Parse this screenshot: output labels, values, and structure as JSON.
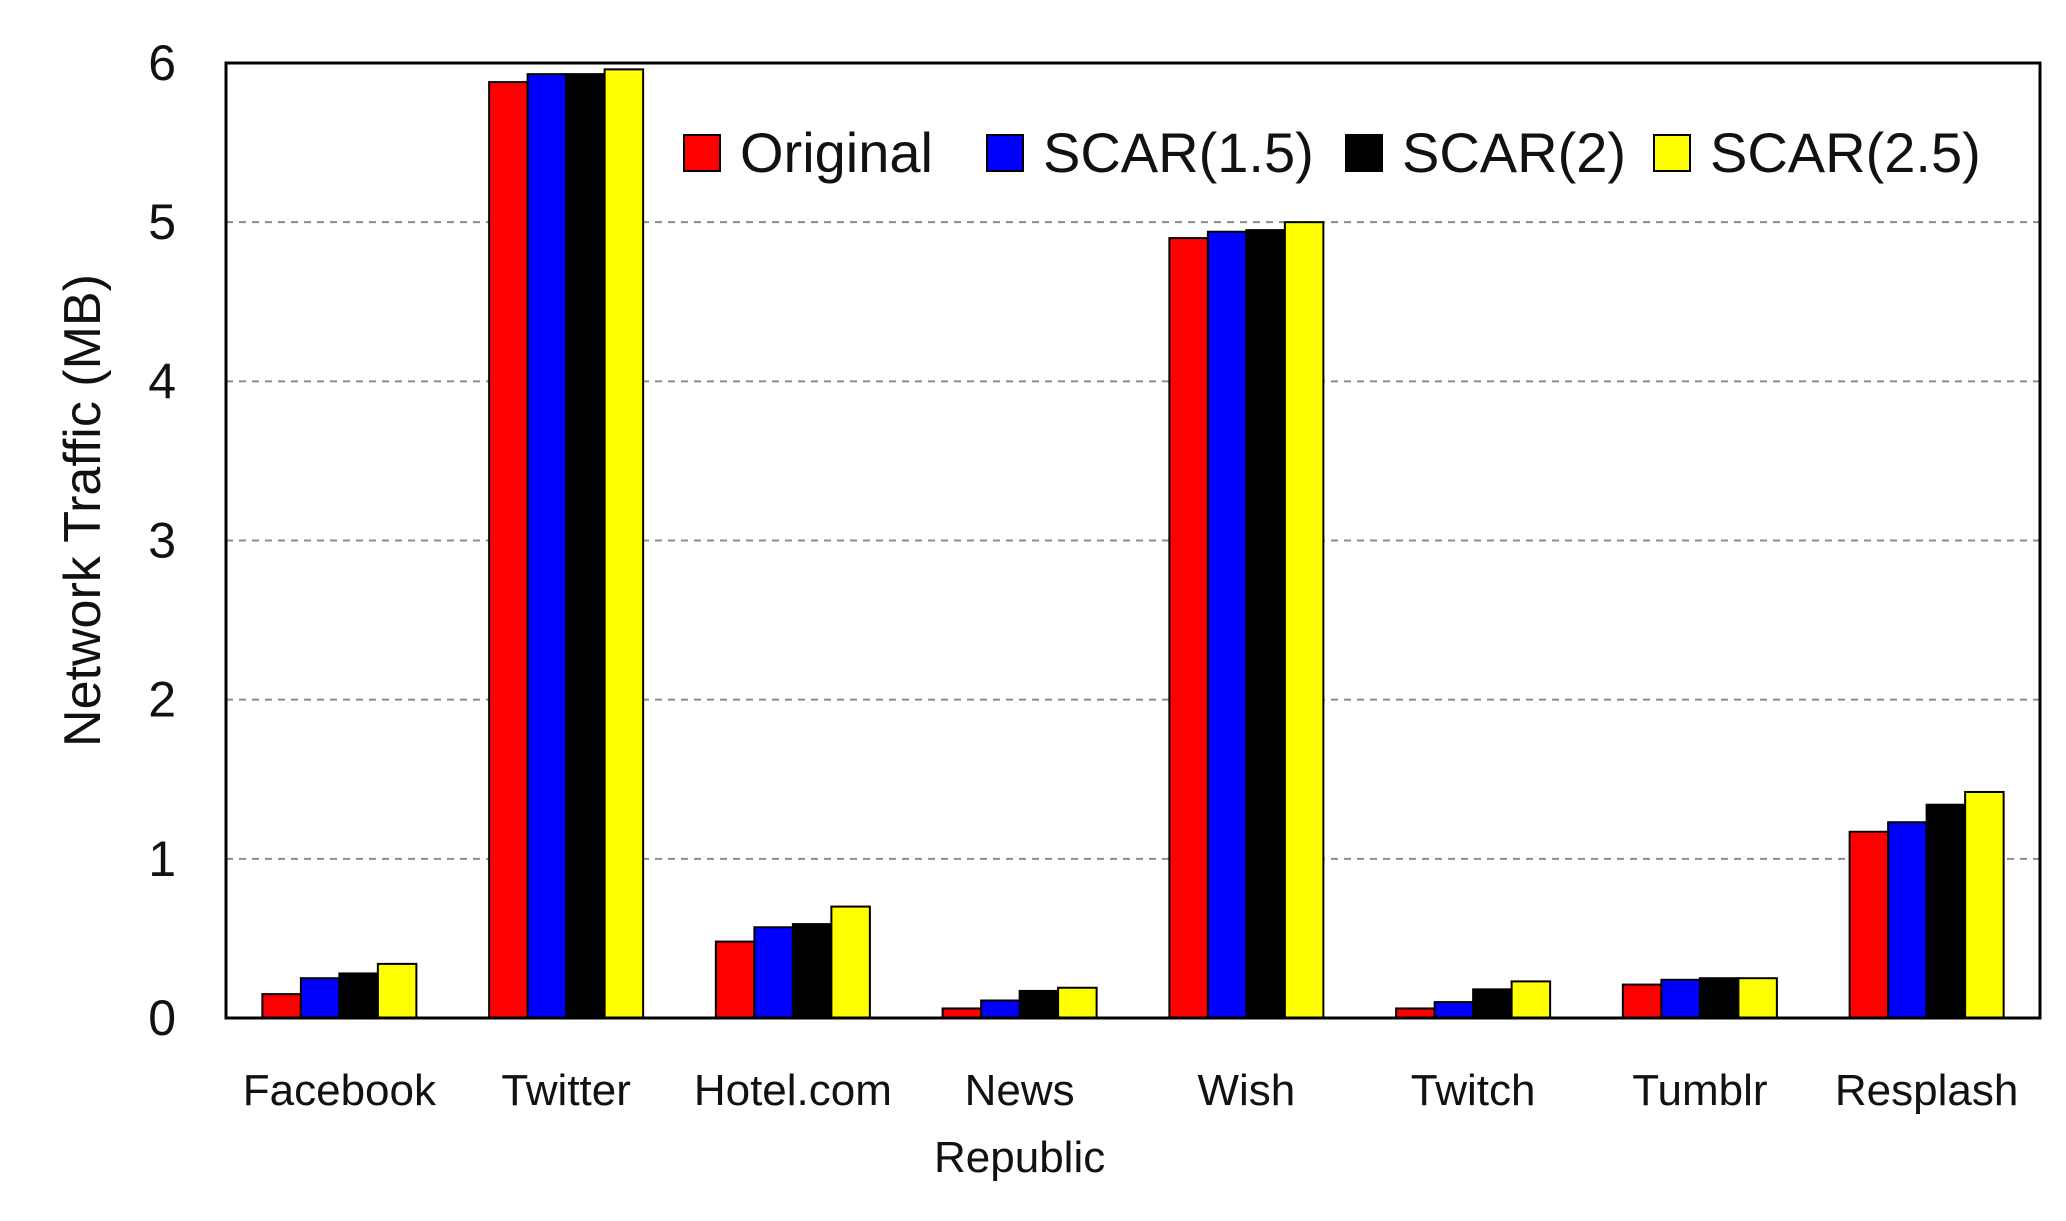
{
  "chart_data": {
    "type": "bar",
    "title": "",
    "xlabel": "",
    "ylabel": "Network Traffic (MB)",
    "ylim": [
      0,
      6
    ],
    "yticks": [
      0,
      1,
      2,
      3,
      4,
      5,
      6
    ],
    "ytick_labels": [
      "0",
      "1",
      "2",
      "3",
      "4",
      "5",
      "6"
    ],
    "grid": "horizontal dashed",
    "legend_position": "top-right",
    "categories": [
      [
        "Facebook"
      ],
      [
        "Twitter"
      ],
      [
        "Hotel.com"
      ],
      [
        "News",
        "Republic"
      ],
      [
        "Wish"
      ],
      [
        "Twitch"
      ],
      [
        "Tumblr"
      ],
      [
        "Resplash"
      ]
    ],
    "series": [
      {
        "name": "Original",
        "color": "#ff0000",
        "values": [
          0.15,
          5.88,
          0.48,
          0.06,
          4.9,
          0.06,
          0.21,
          1.17
        ]
      },
      {
        "name": "SCAR(1.5)",
        "color": "#0000ff",
        "values": [
          0.25,
          5.93,
          0.57,
          0.11,
          4.94,
          0.1,
          0.24,
          1.23
        ]
      },
      {
        "name": "SCAR(2)",
        "color": "#000000",
        "values": [
          0.28,
          5.93,
          0.59,
          0.17,
          4.95,
          0.18,
          0.25,
          1.34
        ]
      },
      {
        "name": "SCAR(2.5)",
        "color": "#ffff00",
        "values": [
          0.34,
          5.96,
          0.7,
          0.19,
          5.0,
          0.23,
          0.25,
          1.42
        ]
      }
    ]
  }
}
